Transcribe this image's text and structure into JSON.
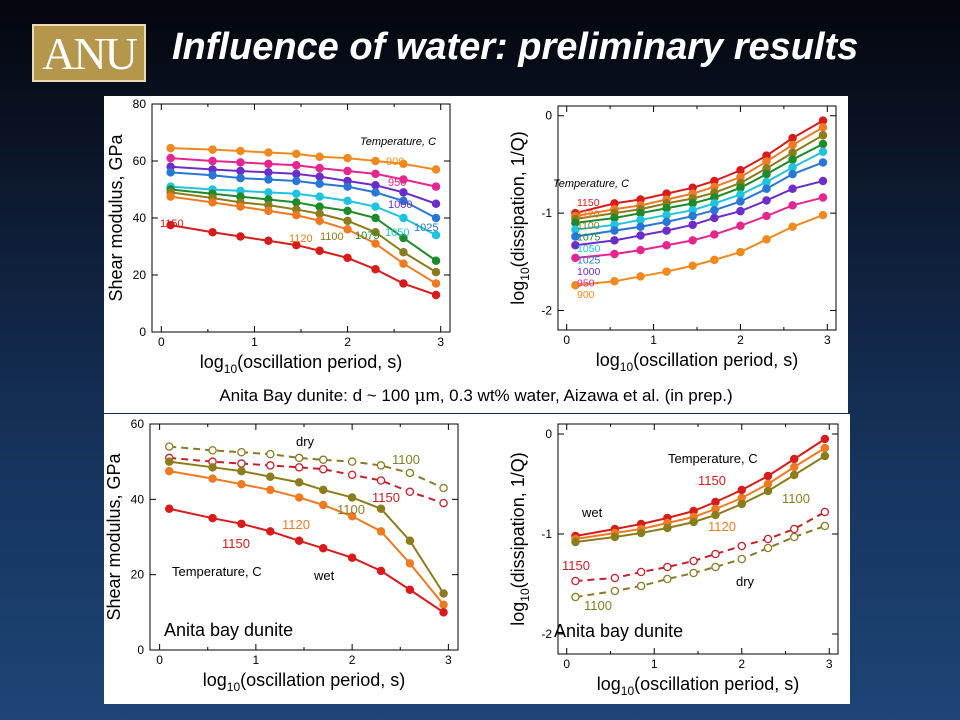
{
  "header": {
    "logo_text": "ANU",
    "title": "Influence of water: preliminary results"
  },
  "caption": {
    "before": "Anita Bay dunite: d ~ 100 ",
    "mu": "μ",
    "after": "m, 0.3 wt% water, Aizawa et al. (in prep.)"
  },
  "colors": {
    "t900": "#f08a1e",
    "t950": "#e6268f",
    "t1000": "#6c2ec9",
    "t1025": "#2876d6",
    "t1050": "#1fc4df",
    "t1075": "#1e8a2a",
    "t1100": "#8c7d1c",
    "t1120": "#f07a22",
    "t1150": "#d81b1b",
    "dry1100": "#8a7a24",
    "dry1150": "#c8202a"
  },
  "chart_data": [
    {
      "type": "line",
      "title": "",
      "xlabel_prefix": "log",
      "xlabel_sub": "10",
      "xlabel_suffix": "(oscillation period, s)",
      "ylabel": "Shear modulus, GPa",
      "xlim": [
        -0.1,
        3.1
      ],
      "ylim": [
        0,
        80
      ],
      "xticks": [
        "0",
        "1",
        "2",
        "3"
      ],
      "yticks": [
        "0",
        "20",
        "40",
        "60",
        "80"
      ],
      "legend_title": "Temperature, C",
      "series": [
        {
          "name": "900",
          "color": "#f08a1e",
          "x": [
            0.1,
            0.55,
            0.85,
            1.15,
            1.45,
            1.7,
            2.0,
            2.3,
            2.6,
            2.95
          ],
          "y": [
            64.5,
            64,
            63.5,
            63,
            62.5,
            61.5,
            61,
            60,
            59,
            57
          ]
        },
        {
          "name": "950",
          "color": "#e6268f",
          "x": [
            0.1,
            0.55,
            0.85,
            1.15,
            1.45,
            1.7,
            2.0,
            2.3,
            2.6,
            2.95
          ],
          "y": [
            61,
            60,
            59.5,
            59,
            58.5,
            57.5,
            56.5,
            55.5,
            53.5,
            51
          ]
        },
        {
          "name": "1000",
          "color": "#6c2ec9",
          "x": [
            0.1,
            0.55,
            0.85,
            1.15,
            1.45,
            1.7,
            2.0,
            2.3,
            2.6,
            2.95
          ],
          "y": [
            58,
            57,
            56.5,
            56,
            55.5,
            54.5,
            53,
            51.5,
            49,
            45
          ]
        },
        {
          "name": "1025",
          "color": "#2876d6",
          "x": [
            0.1,
            0.55,
            0.85,
            1.15,
            1.45,
            1.7,
            2.0,
            2.3,
            2.6,
            2.95
          ],
          "y": [
            56,
            55,
            54,
            53.5,
            53,
            52,
            51,
            49,
            46,
            40
          ]
        },
        {
          "name": "1050",
          "color": "#1fc4df",
          "x": [
            0.1,
            0.55,
            0.85,
            1.15,
            1.45,
            1.7,
            2.0,
            2.3,
            2.6,
            2.95
          ],
          "y": [
            51,
            50,
            49.5,
            49,
            48.5,
            47.5,
            46,
            44,
            40,
            34
          ]
        },
        {
          "name": "1075",
          "color": "#1e8a2a",
          "x": [
            0.1,
            0.55,
            0.85,
            1.15,
            1.45,
            1.7,
            2.0,
            2.3,
            2.6,
            2.95
          ],
          "y": [
            50,
            48.5,
            47.5,
            46.5,
            45.5,
            44,
            42.5,
            40,
            33,
            25
          ]
        },
        {
          "name": "1100",
          "color": "#8c7d1c",
          "x": [
            0.1,
            0.55,
            0.85,
            1.15,
            1.45,
            1.7,
            2.0,
            2.3,
            2.6,
            2.95
          ],
          "y": [
            49,
            47,
            45.5,
            44.5,
            43,
            41.5,
            39,
            35,
            28,
            21
          ]
        },
        {
          "name": "1120",
          "color": "#f07a22",
          "x": [
            0.1,
            0.55,
            0.85,
            1.15,
            1.45,
            1.7,
            2.0,
            2.3,
            2.6,
            2.95
          ],
          "y": [
            47.5,
            45.5,
            44,
            42.5,
            41,
            39,
            36,
            31,
            24,
            17
          ]
        },
        {
          "name": "1150",
          "color": "#d81b1b",
          "x": [
            0.1,
            0.55,
            0.85,
            1.15,
            1.45,
            1.7,
            2.0,
            2.3,
            2.6,
            2.95
          ],
          "y": [
            37.5,
            35,
            33.5,
            32,
            30.5,
            28.5,
            26,
            22,
            17,
            13
          ]
        }
      ]
    },
    {
      "type": "line",
      "title": "",
      "xlabel_prefix": "log",
      "xlabel_sub": "10",
      "xlabel_suffix": "(oscillation period, s)",
      "ylabel_prefix": "log",
      "ylabel_sub": "10",
      "ylabel_suffix": "(dissipation, 1/Q)",
      "xlim": [
        -0.1,
        3.1
      ],
      "ylim": [
        -2.2,
        0.1
      ],
      "xticks": [
        "0",
        "1",
        "2",
        "3"
      ],
      "yticks": [
        "-2",
        "-1",
        "0"
      ],
      "legend_title": "Temperature, C",
      "series": [
        {
          "name": "1150",
          "color": "#d81b1b",
          "x": [
            0.1,
            0.55,
            0.85,
            1.15,
            1.45,
            1.7,
            2.0,
            2.3,
            2.6,
            2.95
          ],
          "y": [
            -1.0,
            -0.9,
            -0.86,
            -0.8,
            -0.74,
            -0.67,
            -0.56,
            -0.41,
            -0.23,
            -0.05
          ]
        },
        {
          "name": "1120",
          "color": "#f07a22",
          "x": [
            0.1,
            0.55,
            0.85,
            1.15,
            1.45,
            1.7,
            2.0,
            2.3,
            2.6,
            2.95
          ],
          "y": [
            -1.03,
            -0.96,
            -0.92,
            -0.86,
            -0.8,
            -0.73,
            -0.63,
            -0.47,
            -0.3,
            -0.12
          ]
        },
        {
          "name": "1100",
          "color": "#8c7d1c",
          "x": [
            0.1,
            0.55,
            0.85,
            1.15,
            1.45,
            1.7,
            2.0,
            2.3,
            2.6,
            2.95
          ],
          "y": [
            -1.06,
            -1.0,
            -0.96,
            -0.9,
            -0.85,
            -0.79,
            -0.69,
            -0.54,
            -0.38,
            -0.2
          ]
        },
        {
          "name": "1075",
          "color": "#1e8a2a",
          "x": [
            0.1,
            0.55,
            0.85,
            1.15,
            1.45,
            1.7,
            2.0,
            2.3,
            2.6,
            2.95
          ],
          "y": [
            -1.1,
            -1.05,
            -1.0,
            -0.95,
            -0.9,
            -0.84,
            -0.74,
            -0.6,
            -0.45,
            -0.29
          ]
        },
        {
          "name": "1050",
          "color": "#1fc4df",
          "x": [
            0.1,
            0.55,
            0.85,
            1.15,
            1.45,
            1.7,
            2.0,
            2.3,
            2.6,
            2.95
          ],
          "y": [
            -1.17,
            -1.12,
            -1.07,
            -1.02,
            -0.97,
            -0.9,
            -0.81,
            -0.68,
            -0.53,
            -0.37
          ]
        },
        {
          "name": "1025",
          "color": "#2876d6",
          "x": [
            0.1,
            0.55,
            0.85,
            1.15,
            1.45,
            1.7,
            2.0,
            2.3,
            2.6,
            2.95
          ],
          "y": [
            -1.24,
            -1.18,
            -1.14,
            -1.09,
            -1.03,
            -0.97,
            -0.88,
            -0.75,
            -0.6,
            -0.48
          ]
        },
        {
          "name": "1000",
          "color": "#6c2ec9",
          "x": [
            0.1,
            0.55,
            0.85,
            1.15,
            1.45,
            1.7,
            2.0,
            2.3,
            2.6,
            2.95
          ],
          "y": [
            -1.33,
            -1.28,
            -1.23,
            -1.18,
            -1.12,
            -1.05,
            -0.98,
            -0.87,
            -0.75,
            -0.67
          ]
        },
        {
          "name": "950",
          "color": "#e6268f",
          "x": [
            0.1,
            0.55,
            0.85,
            1.15,
            1.45,
            1.7,
            2.0,
            2.3,
            2.6,
            2.95
          ],
          "y": [
            -1.46,
            -1.42,
            -1.38,
            -1.33,
            -1.28,
            -1.22,
            -1.13,
            -1.03,
            -0.92,
            -0.84
          ]
        },
        {
          "name": "900",
          "color": "#f08a1e",
          "x": [
            0.1,
            0.55,
            0.85,
            1.15,
            1.45,
            1.7,
            2.0,
            2.3,
            2.6,
            2.95
          ],
          "y": [
            -1.74,
            -1.7,
            -1.65,
            -1.6,
            -1.54,
            -1.48,
            -1.4,
            -1.27,
            -1.14,
            -1.02
          ]
        }
      ]
    },
    {
      "type": "line",
      "title": "",
      "xlabel_prefix": "log",
      "xlabel_sub": "10",
      "xlabel_suffix": "(oscillation period, s)",
      "ylabel": "Shear modulus, GPa",
      "xlim": [
        -0.1,
        3.1
      ],
      "ylim": [
        0,
        60
      ],
      "xticks": [
        "0",
        "1",
        "2",
        "3"
      ],
      "yticks": [
        "0",
        "20",
        "40",
        "60"
      ],
      "legend_title": "Temperature, C",
      "panel_label": "Anita bay dunite",
      "series": [
        {
          "name": "1100 dry",
          "color": "#8a7a24",
          "dashed": true,
          "open": true,
          "x": [
            0.1,
            0.55,
            0.85,
            1.15,
            1.45,
            1.7,
            2.0,
            2.3,
            2.6,
            2.95
          ],
          "y": [
            54,
            53,
            52.5,
            52,
            51,
            50.5,
            50,
            49,
            47,
            43
          ]
        },
        {
          "name": "1150 dry",
          "color": "#c8202a",
          "dashed": true,
          "open": true,
          "x": [
            0.1,
            0.55,
            0.85,
            1.15,
            1.45,
            1.7,
            2.0,
            2.3,
            2.6,
            2.95
          ],
          "y": [
            51,
            50,
            49.5,
            49,
            48.5,
            48,
            46.5,
            45,
            42,
            39
          ]
        },
        {
          "name": "1100 wet",
          "color": "#8c7d1c",
          "x": [
            0.1,
            0.55,
            0.85,
            1.15,
            1.45,
            1.7,
            2.0,
            2.3,
            2.6,
            2.95
          ],
          "y": [
            50,
            48.5,
            47.5,
            46,
            44.5,
            42.5,
            40.5,
            37.5,
            29,
            15
          ]
        },
        {
          "name": "1120 wet",
          "color": "#f07a22",
          "x": [
            0.1,
            0.55,
            0.85,
            1.15,
            1.45,
            1.7,
            2.0,
            2.3,
            2.6,
            2.95
          ],
          "y": [
            47.5,
            45.5,
            44,
            42.5,
            40.5,
            38.5,
            35.5,
            31.5,
            23,
            12
          ]
        },
        {
          "name": "1150 wet",
          "color": "#d81b1b",
          "x": [
            0.1,
            0.55,
            0.85,
            1.15,
            1.45,
            1.7,
            2.0,
            2.3,
            2.6,
            2.95
          ],
          "y": [
            37.5,
            35,
            33.5,
            31.5,
            29,
            27,
            24.5,
            21,
            16,
            10
          ]
        }
      ]
    },
    {
      "type": "line",
      "title": "",
      "xlabel_prefix": "log",
      "xlabel_sub": "10",
      "xlabel_suffix": "(oscillation period, s)",
      "ylabel_prefix": "log",
      "ylabel_sub": "10",
      "ylabel_suffix": "(dissipation, 1/Q)",
      "xlim": [
        -0.1,
        3.1
      ],
      "ylim": [
        -2.2,
        0.1
      ],
      "xticks": [
        "0",
        "1",
        "2",
        "3"
      ],
      "yticks": [
        "-2",
        "-1",
        "0"
      ],
      "legend_title": "Temperature, C",
      "panel_label": "Anita bay dunite",
      "series": [
        {
          "name": "1150 wet",
          "color": "#d81b1b",
          "x": [
            0.1,
            0.55,
            0.85,
            1.15,
            1.45,
            1.7,
            2.0,
            2.3,
            2.6,
            2.95
          ],
          "y": [
            -1.02,
            -0.95,
            -0.9,
            -0.84,
            -0.77,
            -0.68,
            -0.56,
            -0.42,
            -0.25,
            -0.05
          ]
        },
        {
          "name": "1120 wet",
          "color": "#f07a22",
          "x": [
            0.1,
            0.55,
            0.85,
            1.15,
            1.45,
            1.7,
            2.0,
            2.3,
            2.6,
            2.95
          ],
          "y": [
            -1.05,
            -0.99,
            -0.95,
            -0.89,
            -0.83,
            -0.75,
            -0.64,
            -0.5,
            -0.33,
            -0.14
          ]
        },
        {
          "name": "1100 wet",
          "color": "#8c7d1c",
          "x": [
            0.1,
            0.55,
            0.85,
            1.15,
            1.45,
            1.7,
            2.0,
            2.3,
            2.6,
            2.95
          ],
          "y": [
            -1.08,
            -1.03,
            -0.99,
            -0.94,
            -0.88,
            -0.81,
            -0.7,
            -0.57,
            -0.41,
            -0.22
          ]
        },
        {
          "name": "1150 dry",
          "color": "#c8202a",
          "dashed": true,
          "open": true,
          "x": [
            0.1,
            0.55,
            0.85,
            1.15,
            1.45,
            1.7,
            2.0,
            2.3,
            2.6,
            2.95
          ],
          "y": [
            -1.47,
            -1.44,
            -1.38,
            -1.33,
            -1.27,
            -1.2,
            -1.12,
            -1.05,
            -0.95,
            -0.78
          ]
        },
        {
          "name": "1100 dry",
          "color": "#8a7a24",
          "dashed": true,
          "open": true,
          "x": [
            0.1,
            0.55,
            0.85,
            1.15,
            1.45,
            1.7,
            2.0,
            2.3,
            2.6,
            2.95
          ],
          "y": [
            -1.63,
            -1.57,
            -1.52,
            -1.45,
            -1.39,
            -1.33,
            -1.25,
            -1.14,
            -1.03,
            -0.92
          ]
        }
      ]
    }
  ],
  "annotations": {
    "p1": {
      "legend_title": "Temperature, C",
      "labels": [
        "900",
        "950",
        "1000",
        "1025",
        "1050",
        "1075",
        "1100",
        "1120",
        "1150"
      ]
    },
    "p2": {
      "legend_title": "Temperature, C",
      "labels": [
        "1150",
        "1120",
        "1100",
        "1075",
        "1050",
        "1025",
        "1000",
        "950",
        "900"
      ]
    },
    "p3": {
      "legend_title": "Temperature, C",
      "dry": "dry",
      "wet": "wet",
      "d1100": "1100",
      "d1150": "1150",
      "w1100": "1100",
      "w1120": "1120",
      "w1150": "1150",
      "panel_label": "Anita bay dunite"
    },
    "p4": {
      "legend_title": "Temperature, C",
      "dry": "dry",
      "wet": "wet",
      "w1150": "1150",
      "w1120": "1120",
      "w1100": "1100",
      "d1150": "1150",
      "d1100": "1100",
      "panel_label": "Anita bay dunite"
    }
  }
}
